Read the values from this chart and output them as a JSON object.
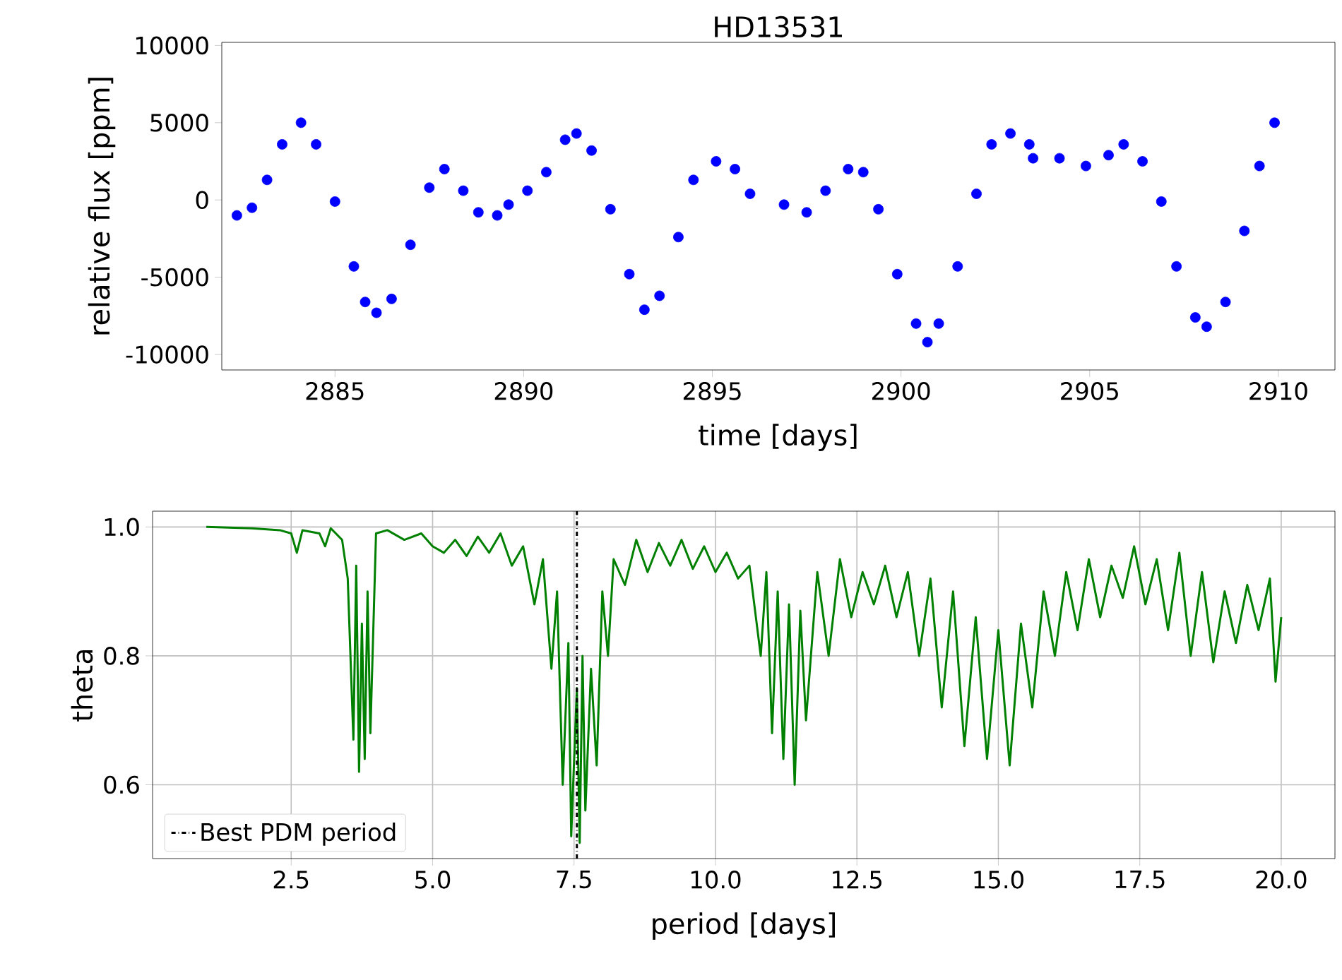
{
  "chart_data": [
    {
      "type": "scatter",
      "title": "HD13531",
      "xlabel": "time [days]",
      "ylabel": "relative flux [ppm]",
      "xlim": [
        2882.0,
        2911.5
      ],
      "ylim": [
        -11000,
        10200
      ],
      "xticks": [
        2885,
        2890,
        2895,
        2900,
        2905,
        2910
      ],
      "yticks": [
        -10000,
        -5000,
        0,
        5000,
        10000
      ],
      "marker": "circle",
      "grid": false,
      "series": [
        {
          "color": "#0000ff",
          "x": [
            2882.4,
            2882.8,
            2883.2,
            2883.6,
            2884.1,
            2884.5,
            2885.0,
            2885.5,
            2885.8,
            2886.1,
            2886.5,
            2887.0,
            2887.5,
            2887.9,
            2888.4,
            2888.8,
            2889.3,
            2889.6,
            2890.1,
            2890.6,
            2891.1,
            2891.4,
            2891.8,
            2892.3,
            2892.8,
            2893.2,
            2893.6,
            2894.1,
            2894.5,
            2895.1,
            2895.6,
            2896.0,
            2896.9,
            2897.5,
            2898.0,
            2898.6,
            2899.0,
            2899.4,
            2899.9,
            2900.4,
            2900.7,
            2901.0,
            2901.5,
            2902.0,
            2902.4,
            2902.9,
            2903.4,
            2903.5,
            2904.2,
            2904.9,
            2905.5,
            2905.9,
            2906.4,
            2906.9,
            2907.3,
            2907.8,
            2908.1,
            2908.6,
            2909.1,
            2909.5,
            2909.9
          ],
          "values": [
            -1000,
            -500,
            1300,
            3600,
            5000,
            3600,
            -100,
            -4300,
            -6600,
            -7300,
            -6400,
            -2900,
            800,
            2000,
            600,
            -800,
            -1000,
            -300,
            600,
            1800,
            3900,
            4300,
            3200,
            -600,
            -4800,
            -7100,
            -6200,
            -2400,
            1300,
            2500,
            2000,
            400,
            -300,
            -800,
            600,
            2000,
            1800,
            -600,
            -4800,
            -8000,
            -9200,
            -8000,
            -4300,
            400,
            3600,
            4300,
            3600,
            2700,
            2700,
            2200,
            2900,
            3600,
            2500,
            -100,
            -4300,
            -7600,
            -8200,
            -6600,
            -2000,
            2200,
            5000
          ]
        }
      ]
    },
    {
      "type": "line",
      "xlabel": "period [days]",
      "ylabel": "theta",
      "xlim": [
        0.05,
        20.95
      ],
      "ylim": [
        0.4855,
        1.0245
      ],
      "xticks": [
        2.5,
        {
          "value": 5,
          "label": "5.0"
        },
        7.5,
        {
          "value": 10,
          "label": "10.0"
        },
        12.5,
        {
          "value": 15,
          "label": "15.0"
        },
        17.5,
        {
          "value": 20,
          "label": "20.0"
        }
      ],
      "yticks": [
        0.6,
        0.8,
        {
          "value": 1,
          "label": "1.0"
        }
      ],
      "grid": true,
      "legend": "bottom left",
      "ref_lines": [
        {
          "axis": "x",
          "value": 7.55,
          "label": "Best PDM period",
          "color": "#000000",
          "line_style": "dashdot"
        }
      ],
      "series": [
        {
          "color": "#008000",
          "x": [
            1.0,
            1.8,
            2.3,
            2.5,
            2.6,
            2.7,
            3.0,
            3.1,
            3.2,
            3.4,
            3.5,
            3.6,
            3.65,
            3.7,
            3.75,
            3.8,
            3.85,
            3.9,
            4.0,
            4.2,
            4.5,
            4.8,
            5.0,
            5.2,
            5.4,
            5.6,
            5.8,
            6.0,
            6.2,
            6.4,
            6.6,
            6.8,
            6.95,
            7.1,
            7.2,
            7.3,
            7.4,
            7.45,
            7.55,
            7.6,
            7.65,
            7.7,
            7.8,
            7.9,
            8.0,
            8.1,
            8.2,
            8.4,
            8.6,
            8.8,
            9.0,
            9.2,
            9.4,
            9.6,
            9.8,
            10.0,
            10.2,
            10.4,
            10.6,
            10.8,
            10.9,
            11.0,
            11.1,
            11.2,
            11.3,
            11.4,
            11.5,
            11.6,
            11.8,
            12.0,
            12.2,
            12.4,
            12.6,
            12.8,
            13.0,
            13.2,
            13.4,
            13.6,
            13.8,
            14.0,
            14.2,
            14.4,
            14.6,
            14.8,
            15.0,
            15.2,
            15.4,
            15.6,
            15.8,
            16.0,
            16.2,
            16.4,
            16.6,
            16.8,
            17.0,
            17.2,
            17.4,
            17.6,
            17.8,
            18.0,
            18.2,
            18.4,
            18.6,
            18.8,
            19.0,
            19.2,
            19.4,
            19.6,
            19.8,
            19.9,
            20.0
          ],
          "values": [
            1.0,
            0.998,
            0.995,
            0.99,
            0.96,
            0.995,
            0.99,
            0.97,
            0.998,
            0.98,
            0.92,
            0.67,
            0.94,
            0.62,
            0.85,
            0.64,
            0.9,
            0.68,
            0.99,
            0.995,
            0.98,
            0.99,
            0.97,
            0.96,
            0.98,
            0.955,
            0.985,
            0.96,
            0.99,
            0.94,
            0.97,
            0.88,
            0.95,
            0.78,
            0.9,
            0.6,
            0.82,
            0.52,
            0.75,
            0.51,
            0.8,
            0.56,
            0.78,
            0.63,
            0.9,
            0.8,
            0.95,
            0.91,
            0.98,
            0.93,
            0.975,
            0.94,
            0.98,
            0.935,
            0.97,
            0.93,
            0.96,
            0.92,
            0.94,
            0.8,
            0.93,
            0.68,
            0.9,
            0.64,
            0.88,
            0.6,
            0.87,
            0.7,
            0.93,
            0.8,
            0.95,
            0.86,
            0.93,
            0.88,
            0.94,
            0.86,
            0.93,
            0.8,
            0.92,
            0.72,
            0.9,
            0.66,
            0.86,
            0.64,
            0.84,
            0.63,
            0.85,
            0.72,
            0.9,
            0.8,
            0.93,
            0.84,
            0.95,
            0.86,
            0.94,
            0.89,
            0.97,
            0.88,
            0.95,
            0.84,
            0.96,
            0.8,
            0.93,
            0.79,
            0.9,
            0.82,
            0.91,
            0.84,
            0.92,
            0.76,
            0.86
          ]
        }
      ]
    }
  ]
}
